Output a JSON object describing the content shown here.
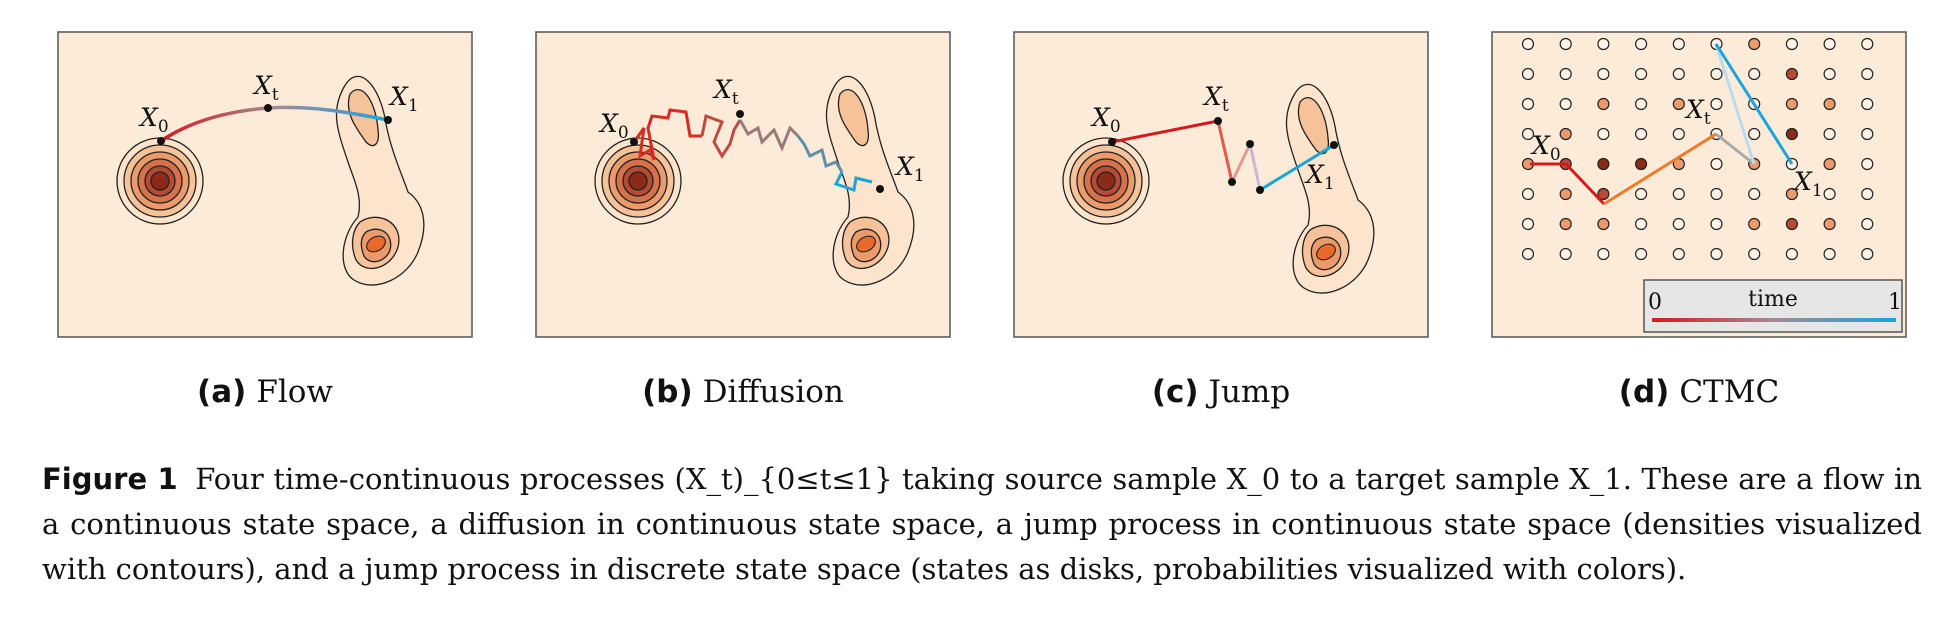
{
  "panels": [
    {
      "tag": "(a)",
      "name": "Flow"
    },
    {
      "tag": "(b)",
      "name": "Diffusion"
    },
    {
      "tag": "(c)",
      "name": "Jump"
    },
    {
      "tag": "(d)",
      "name": "CTMC"
    }
  ],
  "point_labels": {
    "x": "X",
    "sub0": "0",
    "subt": "t",
    "sub1": "1"
  },
  "legend": {
    "title": "time",
    "start": "0",
    "end": "1"
  },
  "caption": {
    "label": "Figure 1",
    "text": "Four time-continuous processes (X_t)_{0≤t≤1} taking source sample X_0 to a target sample X_1. These are a flow in a continuous state space, a diffusion in continuous state space, a jump process in continuous state space (densities visualized with contours), and a jump process in discrete state space (states as disks, probabilities visualized with colors)."
  },
  "colors": {
    "panel_bg": "#fdebd9",
    "time_start": "#d7191c",
    "time_end": "#1ba3dc",
    "density_dark": "#8c2a1a",
    "density_light": "#fbd0a6"
  }
}
